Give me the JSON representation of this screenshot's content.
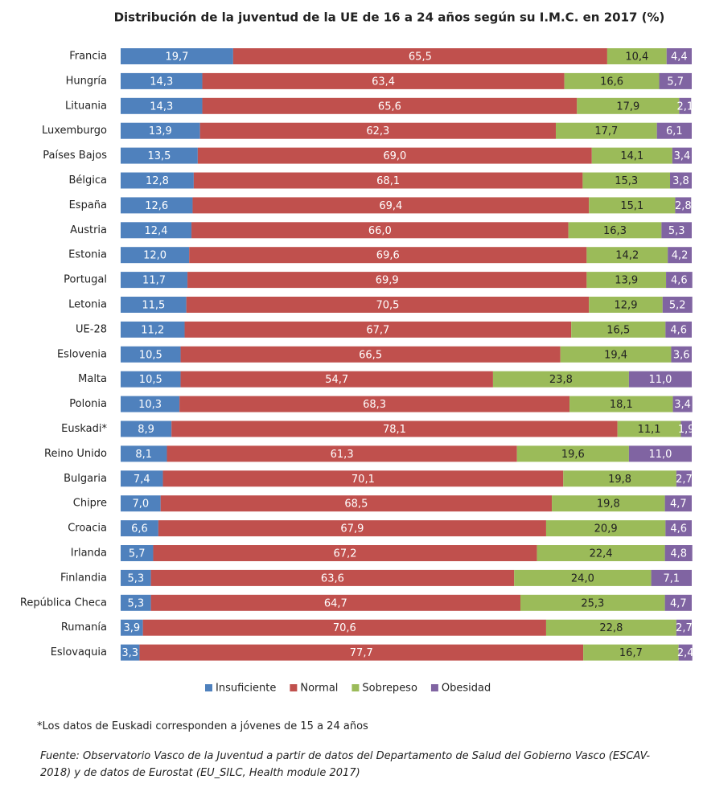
{
  "chart_data": {
    "type": "stacked_bar",
    "title": "Distribución de la juventud de la UE de 16 a 24 años según su I.M.C. en 2017 (%)",
    "categories": [
      "Francia",
      "Hungría",
      "Lituania",
      "Luxemburgo",
      "Países Bajos",
      "Bélgica",
      "España",
      "Austria",
      "Estonia",
      "Portugal",
      "Letonia",
      "UE-28",
      "Eslovenia",
      "Malta",
      "Polonia",
      "Euskadi*",
      "Reino Unido",
      "Bulgaria",
      "Chipre",
      "Croacia",
      "Irlanda",
      "Finlandia",
      "República Checa",
      "Rumanía",
      "Eslovaquia"
    ],
    "xlim": [
      0,
      100
    ],
    "legend": "bottom",
    "series": [
      {
        "name": "Insuficiente",
        "color": "#4f81bd",
        "values": [
          19.7,
          14.3,
          14.3,
          13.9,
          13.5,
          12.8,
          12.6,
          12.4,
          12.0,
          11.7,
          11.5,
          11.2,
          10.5,
          10.5,
          10.3,
          8.9,
          8.1,
          7.4,
          7.0,
          6.6,
          5.7,
          5.3,
          5.3,
          3.9,
          3.3
        ],
        "value_labels": [
          "19,7",
          "14,3",
          "14,3",
          "13,9",
          "13,5",
          "12,8",
          "12,6",
          "12,4",
          "12,0",
          "11,7",
          "11,5",
          "11,2",
          "10,5",
          "10,5",
          "10,3",
          "8,9",
          "8,1",
          "7,4",
          "7,0",
          "6,6",
          "5,7",
          "5,3",
          "5,3",
          "3,9",
          "3,3"
        ]
      },
      {
        "name": "Normal",
        "color": "#c0504d",
        "values": [
          65.5,
          63.4,
          65.6,
          62.3,
          69.0,
          68.1,
          69.4,
          66.0,
          69.6,
          69.9,
          70.5,
          67.7,
          66.5,
          54.7,
          68.3,
          78.1,
          61.3,
          70.1,
          68.5,
          67.9,
          67.2,
          63.6,
          64.7,
          70.6,
          77.7
        ],
        "value_labels": [
          "65,5",
          "63,4",
          "65,6",
          "62,3",
          "69,0",
          "68,1",
          "69,4",
          "66,0",
          "69,6",
          "69,9",
          "70,5",
          "67,7",
          "66,5",
          "54,7",
          "68,3",
          "78,1",
          "61,3",
          "70,1",
          "68,5",
          "67,9",
          "67,2",
          "63,6",
          "64,7",
          "70,6",
          "77,7"
        ]
      },
      {
        "name": "Sobrepeso",
        "color": "#9bbb59",
        "values": [
          10.4,
          16.6,
          17.9,
          17.7,
          14.1,
          15.3,
          15.1,
          16.3,
          14.2,
          13.9,
          12.9,
          16.5,
          19.4,
          23.8,
          18.1,
          11.1,
          19.6,
          19.8,
          19.8,
          20.9,
          22.4,
          24.0,
          25.3,
          22.8,
          16.7
        ],
        "value_labels": [
          "10,4",
          "16,6",
          "17,9",
          "17,7",
          "14,1",
          "15,3",
          "15,1",
          "16,3",
          "14,2",
          "13,9",
          "12,9",
          "16,5",
          "19,4",
          "23,8",
          "18,1",
          "11,1",
          "19,6",
          "19,8",
          "19,8",
          "20,9",
          "22,4",
          "24,0",
          "25,3",
          "22,8",
          "16,7"
        ]
      },
      {
        "name": "Obesidad",
        "color": "#8064a2",
        "values": [
          4.4,
          5.7,
          2.1,
          6.1,
          3.4,
          3.8,
          2.8,
          5.3,
          4.2,
          4.6,
          5.2,
          4.6,
          3.6,
          11.0,
          3.4,
          1.9,
          11.0,
          2.7,
          4.7,
          4.6,
          4.8,
          7.1,
          4.7,
          2.7,
          2.4
        ],
        "value_labels": [
          "4,4",
          "5,7",
          "2,1",
          "6,1",
          "3,4",
          "3,8",
          "2,8",
          "5,3",
          "4,2",
          "4,6",
          "5,2",
          "4,6",
          "3,6",
          "11,0",
          "3,4",
          "1,9",
          "11,0",
          "2,7",
          "4,7",
          "4,6",
          "4,8",
          "7,1",
          "4,7",
          "2,7",
          "2,4"
        ]
      }
    ]
  },
  "notes": {
    "footnote": "*Los datos de Euskadi corresponden a jóvenes de 15 a 24 años",
    "source": "Fuente: Observatorio Vasco de la Juventud a partir de datos del Departamento de Salud del Gobierno Vasco (ESCAV-2018) y de datos de Eurostat (EU_SILC, Health module 2017)"
  }
}
